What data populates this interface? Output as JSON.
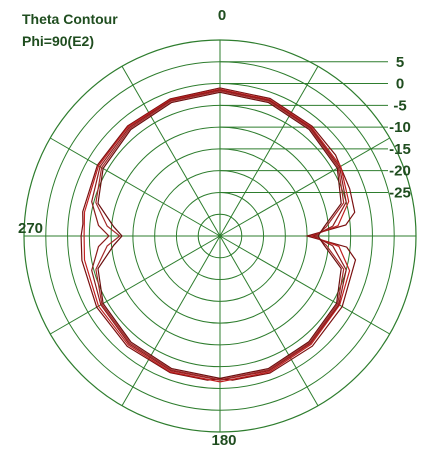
{
  "title_line1": "Theta Contour",
  "title_line2": "Phi=90(E2)",
  "colors": {
    "grid": "#2e7d2e",
    "text": "#1f4d1f",
    "trace_dark": "#7a1010",
    "trace_light": "#c02020"
  },
  "chart_data": {
    "type": "polar-line",
    "r_tick_labels": [
      "5",
      "0",
      "-5",
      "-10",
      "-15",
      "-20",
      "-25"
    ],
    "r_ticks_db": [
      5,
      0,
      -5,
      -10,
      -15,
      -20,
      -25
    ],
    "r_range_db": [
      -35,
      10
    ],
    "angle_labels": {
      "0": "0",
      "90": "",
      "180": "180",
      "270": "270"
    },
    "angle_step_deg": 30,
    "series": [
      {
        "color": "#7a1010",
        "points": [
          [
            0,
            -1.0
          ],
          [
            20,
            -1.4
          ],
          [
            40,
            -2.1
          ],
          [
            55,
            -2.6
          ],
          [
            70,
            -3.3
          ],
          [
            80,
            -3.6
          ],
          [
            85,
            -6.0
          ],
          [
            90,
            -15.0
          ],
          [
            95,
            -5.8
          ],
          [
            100,
            -3.4
          ],
          [
            120,
            -2.6
          ],
          [
            140,
            -2.0
          ],
          [
            160,
            -1.5
          ],
          [
            175,
            -1.8
          ],
          [
            180,
            -2.2
          ],
          [
            185,
            -1.8
          ],
          [
            200,
            -1.6
          ],
          [
            220,
            -1.9
          ],
          [
            240,
            -2.3
          ],
          [
            260,
            -2.8
          ],
          [
            270,
            -3.1
          ],
          [
            275,
            -3.4
          ],
          [
            280,
            -3.0
          ],
          [
            300,
            -2.5
          ],
          [
            320,
            -2.0
          ],
          [
            340,
            -1.5
          ],
          [
            360,
            -1.0
          ]
        ]
      },
      {
        "color": "#c02020",
        "points": [
          [
            0,
            -1.3
          ],
          [
            20,
            -1.7
          ],
          [
            40,
            -2.4
          ],
          [
            60,
            -3.0
          ],
          [
            75,
            -4.4
          ],
          [
            85,
            -7.8
          ],
          [
            90,
            -14.0
          ],
          [
            95,
            -7.6
          ],
          [
            105,
            -4.2
          ],
          [
            120,
            -3.3
          ],
          [
            140,
            -2.5
          ],
          [
            160,
            -1.8
          ],
          [
            180,
            -1.5
          ],
          [
            200,
            -1.8
          ],
          [
            220,
            -2.3
          ],
          [
            240,
            -2.8
          ],
          [
            260,
            -3.4
          ],
          [
            270,
            -3.8
          ],
          [
            280,
            -3.4
          ],
          [
            300,
            -2.8
          ],
          [
            320,
            -2.2
          ],
          [
            340,
            -1.7
          ],
          [
            360,
            -1.3
          ]
        ]
      },
      {
        "color": "#8b1a1a",
        "points": [
          [
            0,
            -1.5
          ],
          [
            20,
            -1.9
          ],
          [
            40,
            -2.6
          ],
          [
            60,
            -3.3
          ],
          [
            75,
            -5.0
          ],
          [
            85,
            -9.0
          ],
          [
            90,
            -13.5
          ],
          [
            95,
            -9.0
          ],
          [
            105,
            -5.0
          ],
          [
            120,
            -3.5
          ],
          [
            140,
            -2.8
          ],
          [
            160,
            -2.1
          ],
          [
            180,
            -1.9
          ],
          [
            200,
            -2.1
          ],
          [
            220,
            -2.6
          ],
          [
            240,
            -3.4
          ],
          [
            255,
            -4.5
          ],
          [
            265,
            -7.0
          ],
          [
            270,
            -9.5
          ],
          [
            275,
            -7.0
          ],
          [
            285,
            -4.5
          ],
          [
            300,
            -3.2
          ],
          [
            320,
            -2.5
          ],
          [
            340,
            -1.9
          ],
          [
            360,
            -1.5
          ]
        ]
      },
      {
        "color": "#a52a2a",
        "points": [
          [
            0,
            -1.7
          ],
          [
            20,
            -2.1
          ],
          [
            40,
            -2.8
          ],
          [
            60,
            -3.6
          ],
          [
            75,
            -5.6
          ],
          [
            85,
            -10.5
          ],
          [
            90,
            -13.0
          ],
          [
            95,
            -10.5
          ],
          [
            105,
            -5.6
          ],
          [
            120,
            -3.8
          ],
          [
            140,
            -3.0
          ],
          [
            160,
            -2.3
          ],
          [
            180,
            -2.0
          ],
          [
            200,
            -2.3
          ],
          [
            220,
            -2.9
          ],
          [
            240,
            -3.7
          ],
          [
            255,
            -5.5
          ],
          [
            265,
            -9.0
          ],
          [
            270,
            -12.0
          ],
          [
            275,
            -9.0
          ],
          [
            285,
            -5.5
          ],
          [
            300,
            -3.6
          ],
          [
            320,
            -2.8
          ],
          [
            340,
            -2.1
          ],
          [
            360,
            -1.7
          ]
        ]
      },
      {
        "color": "#6b0f0f",
        "points": [
          [
            0,
            -2.0
          ],
          [
            20,
            -2.4
          ],
          [
            40,
            -3.1
          ],
          [
            60,
            -3.9
          ],
          [
            75,
            -6.2
          ],
          [
            85,
            -11.0
          ],
          [
            90,
            -12.5
          ],
          [
            95,
            -11.0
          ],
          [
            105,
            -6.2
          ],
          [
            120,
            -4.1
          ],
          [
            140,
            -3.3
          ],
          [
            160,
            -2.6
          ],
          [
            180,
            -2.3
          ],
          [
            200,
            -2.6
          ],
          [
            220,
            -3.2
          ],
          [
            240,
            -4.0
          ],
          [
            255,
            -6.0
          ],
          [
            265,
            -10.5
          ],
          [
            270,
            -12.5
          ],
          [
            275,
            -10.5
          ],
          [
            285,
            -6.0
          ],
          [
            300,
            -4.0
          ],
          [
            320,
            -3.1
          ],
          [
            340,
            -2.4
          ],
          [
            360,
            -2.0
          ]
        ]
      }
    ]
  }
}
